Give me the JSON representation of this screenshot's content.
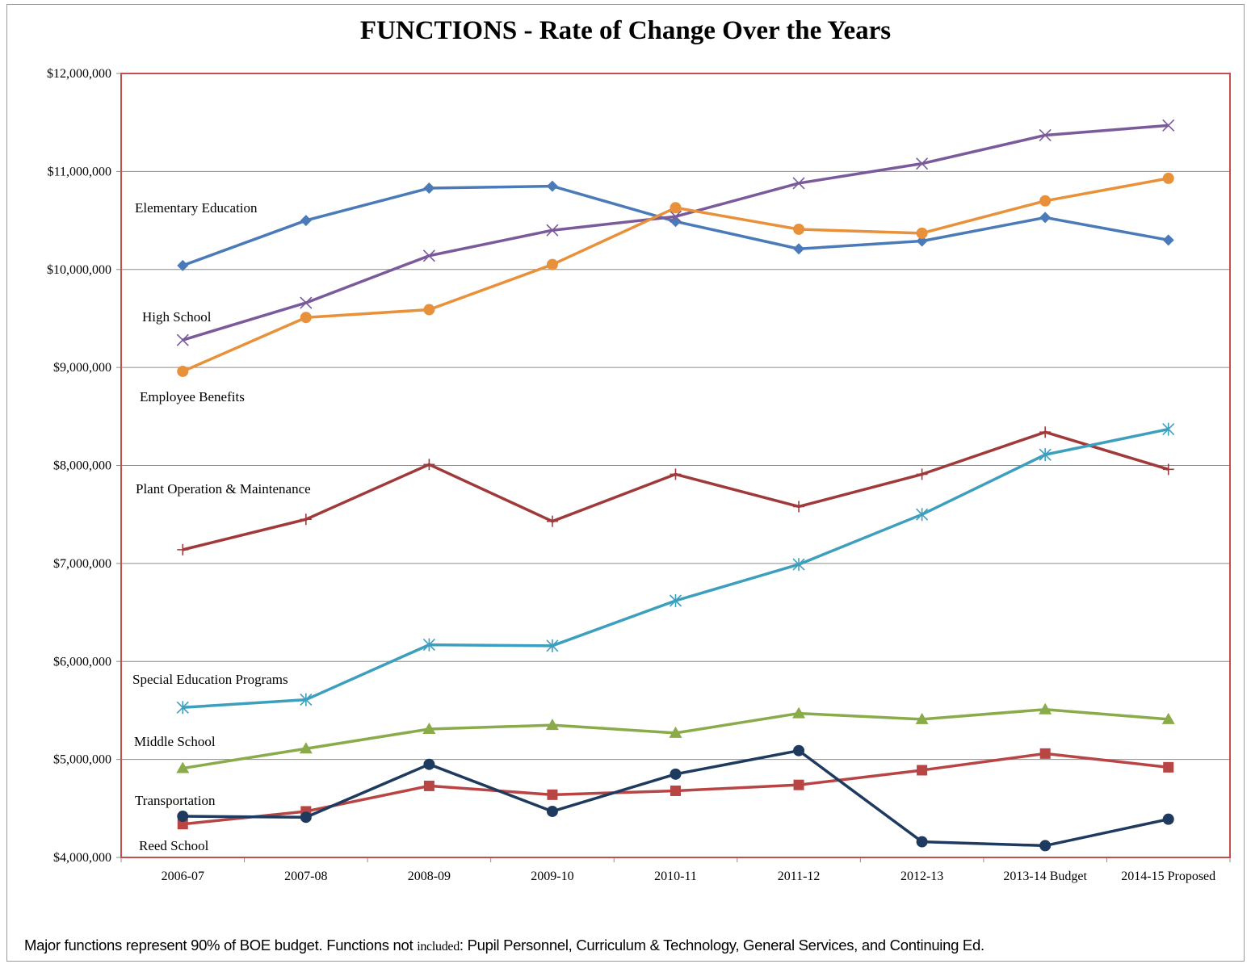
{
  "chart_data": {
    "type": "line",
    "title": "FUNCTIONS - Rate of Change Over the Years",
    "categories": [
      "2006-07",
      "2007-08",
      "2008-09",
      "2009-10",
      "2010-11",
      "2011-12",
      "2012-13",
      "2013-14 Budget",
      "2014-15 Proposed"
    ],
    "ylim": [
      4000000,
      12000000
    ],
    "yticks": [
      "$4,000,000",
      "$5,000,000",
      "$6,000,000",
      "$7,000,000",
      "$8,000,000",
      "$9,000,000",
      "$10,000,000",
      "$11,000,000",
      "$12,000,000"
    ],
    "grid": true,
    "legend": "inline labels",
    "series": [
      {
        "name": "Elementary Education",
        "color": "#4a7ab8",
        "marker": "diamond",
        "values": [
          10040000,
          10500000,
          10830000,
          10850000,
          10490000,
          10210000,
          10290000,
          10530000,
          10300000
        ]
      },
      {
        "name": "High School",
        "color": "#7a5a9a",
        "marker": "x",
        "values": [
          9280000,
          9660000,
          10140000,
          10400000,
          10540000,
          10880000,
          11080000,
          11370000,
          11470000
        ]
      },
      {
        "name": "Employee Benefits",
        "color": "#e8913a",
        "marker": "circle",
        "values": [
          8960000,
          9510000,
          9590000,
          10050000,
          10630000,
          10410000,
          10370000,
          10700000,
          10930000
        ]
      },
      {
        "name": "Plant Operation & Maintenance",
        "color": "#a03a3a",
        "marker": "plus",
        "values": [
          7140000,
          7450000,
          8010000,
          7430000,
          7910000,
          7580000,
          7910000,
          8340000,
          7960000
        ]
      },
      {
        "name": "Special Education Programs",
        "color": "#3d9fbe",
        "marker": "star",
        "values": [
          5530000,
          5610000,
          6170000,
          6160000,
          6620000,
          6990000,
          7500000,
          8110000,
          8370000
        ]
      },
      {
        "name": "Middle School",
        "color": "#8aab4a",
        "marker": "triangle",
        "values": [
          4910000,
          5110000,
          5310000,
          5350000,
          5270000,
          5470000,
          5410000,
          5510000,
          5410000
        ]
      },
      {
        "name": "Transportation",
        "color": "#b84444",
        "marker": "square",
        "values": [
          4340000,
          4470000,
          4730000,
          4640000,
          4680000,
          4740000,
          4890000,
          5060000,
          4920000
        ]
      },
      {
        "name": "Reed School",
        "color": "#1f3a5f",
        "marker": "circle",
        "values": [
          4420000,
          4410000,
          4950000,
          4470000,
          4850000,
          5090000,
          4160000,
          4120000,
          4390000
        ]
      }
    ]
  },
  "footnote": {
    "part1": "Major functions represent 90% of BOE budget. Functions not ",
    "part2": "included",
    "part3": ": Pupil Personnel, Curriculum & Technology, General Services, and Continuing Ed."
  }
}
